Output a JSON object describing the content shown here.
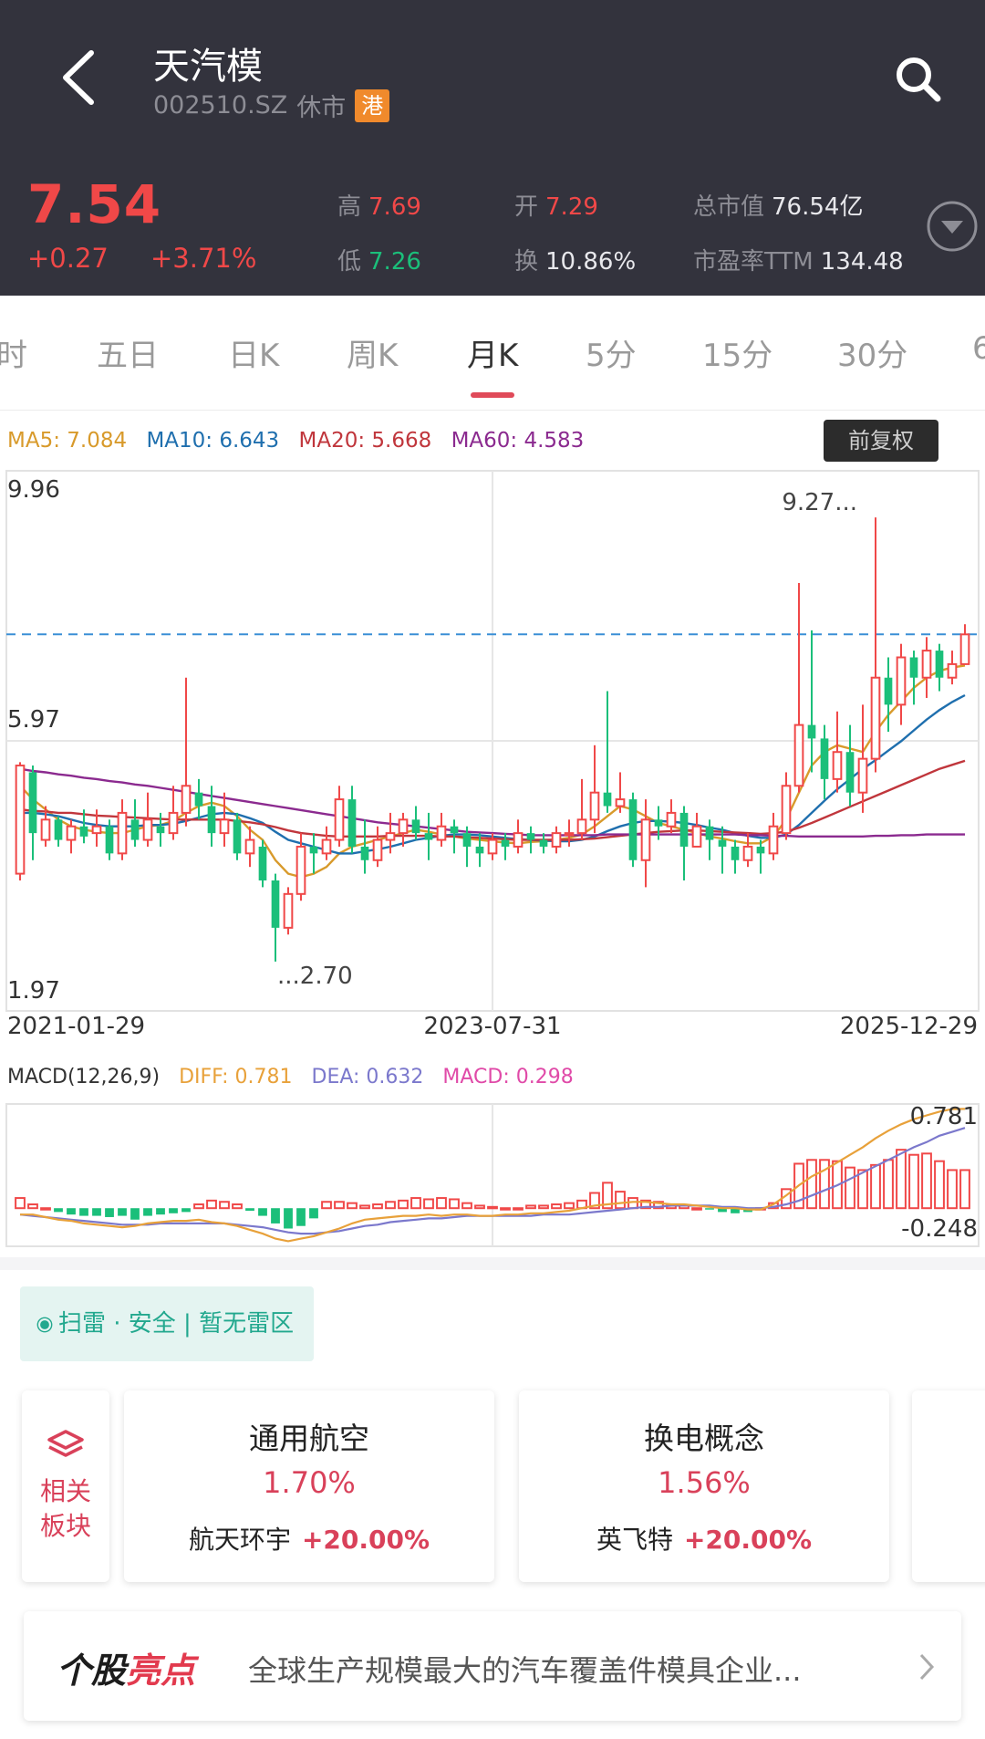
{
  "header": {
    "title": "天汽模",
    "code": "002510.SZ",
    "status": "休市",
    "market_badge": "港",
    "price": "7.54",
    "change": "+0.27",
    "change_pct": "+3.71%",
    "stats": {
      "high_label": "高",
      "high": "7.69",
      "low_label": "低",
      "low": "7.26",
      "open_label": "开",
      "open": "7.29",
      "turnover_label": "换",
      "turnover": "10.86%",
      "mcap_label": "总市值",
      "mcap": "76.54亿",
      "pe_label": "市盈率TTM",
      "pe": "134.48"
    }
  },
  "tabs": [
    "时",
    "五日",
    "日K",
    "周K",
    "月K",
    "5分",
    "15分",
    "30分",
    "6"
  ],
  "active_tab": "月K",
  "ma_legend": {
    "ma5": "MA5: 7.084",
    "ma10": "MA10: 6.643",
    "ma20": "MA20: 5.668",
    "ma60": "MA60: 4.583"
  },
  "adjust_button": "前复权",
  "chart_data": [
    {
      "type": "candlestick",
      "period": "monthly",
      "y_axis_labels": [
        "9.96",
        "5.97",
        "1.97"
      ],
      "ylim": [
        1.97,
        9.96
      ],
      "x_axis_labels": [
        "2021-01-29",
        "2023-07-31",
        "2025-12-29"
      ],
      "annotations": {
        "high": "9.27...",
        "low": "...2.70"
      },
      "last_close_line": 7.54,
      "candles": [
        [
          4.0,
          5.6,
          5.65,
          3.9
        ],
        [
          5.5,
          4.6,
          5.6,
          4.2
        ],
        [
          4.5,
          4.8,
          5.0,
          4.4
        ],
        [
          4.8,
          4.5,
          4.85,
          4.4
        ],
        [
          4.5,
          4.7,
          4.8,
          4.3
        ],
        [
          4.7,
          4.55,
          4.95,
          4.45
        ],
        [
          4.6,
          4.7,
          4.95,
          4.4
        ],
        [
          4.7,
          4.3,
          4.8,
          4.2
        ],
        [
          4.3,
          4.9,
          5.1,
          4.2
        ],
        [
          4.8,
          4.5,
          5.1,
          4.4
        ],
        [
          4.5,
          4.8,
          5.2,
          4.4
        ],
        [
          4.7,
          4.6,
          4.9,
          4.4
        ],
        [
          4.6,
          4.9,
          5.3,
          4.5
        ],
        [
          4.9,
          5.3,
          6.9,
          4.7
        ],
        [
          5.2,
          5.0,
          5.4,
          4.8
        ],
        [
          5.0,
          4.6,
          5.3,
          4.4
        ],
        [
          4.6,
          4.8,
          5.2,
          4.4
        ],
        [
          4.8,
          4.3,
          4.9,
          4.2
        ],
        [
          4.3,
          4.5,
          4.7,
          4.1
        ],
        [
          4.4,
          3.9,
          4.5,
          3.8
        ],
        [
          3.9,
          3.2,
          4.0,
          2.7
        ],
        [
          3.2,
          3.7,
          3.8,
          3.1
        ],
        [
          3.7,
          4.4,
          4.6,
          3.6
        ],
        [
          4.4,
          4.3,
          4.6,
          4.0
        ],
        [
          4.3,
          4.5,
          4.7,
          4.2
        ],
        [
          4.5,
          5.1,
          5.3,
          4.4
        ],
        [
          5.1,
          4.4,
          5.3,
          4.3
        ],
        [
          4.4,
          4.2,
          4.8,
          4.0
        ],
        [
          4.2,
          4.5,
          4.7,
          4.1
        ],
        [
          4.5,
          4.6,
          4.9,
          4.3
        ],
        [
          4.6,
          4.8,
          4.9,
          4.4
        ],
        [
          4.8,
          4.6,
          5.0,
          4.5
        ],
        [
          4.6,
          4.5,
          4.9,
          4.2
        ],
        [
          4.5,
          4.7,
          4.9,
          4.4
        ],
        [
          4.7,
          4.6,
          4.8,
          4.3
        ],
        [
          4.6,
          4.4,
          4.7,
          4.1
        ],
        [
          4.4,
          4.3,
          4.6,
          4.1
        ],
        [
          4.3,
          4.5,
          4.6,
          4.2
        ],
        [
          4.5,
          4.4,
          4.6,
          4.2
        ],
        [
          4.4,
          4.6,
          4.8,
          4.3
        ],
        [
          4.6,
          4.5,
          4.7,
          4.3
        ],
        [
          4.5,
          4.4,
          4.6,
          4.3
        ],
        [
          4.4,
          4.6,
          4.7,
          4.3
        ],
        [
          4.6,
          4.6,
          4.8,
          4.4
        ],
        [
          4.6,
          4.8,
          5.4,
          4.5
        ],
        [
          4.8,
          5.2,
          5.9,
          4.6
        ],
        [
          5.2,
          5.0,
          6.7,
          4.9
        ],
        [
          5.0,
          5.1,
          5.5,
          4.9
        ],
        [
          5.1,
          4.2,
          5.2,
          4.1
        ],
        [
          4.2,
          4.8,
          5.1,
          3.8
        ],
        [
          4.8,
          4.7,
          5.0,
          4.5
        ],
        [
          4.7,
          4.9,
          5.1,
          4.6
        ],
        [
          4.9,
          4.4,
          5.0,
          3.9
        ],
        [
          4.4,
          4.7,
          4.9,
          4.5
        ],
        [
          4.7,
          4.5,
          4.8,
          4.2
        ],
        [
          4.5,
          4.4,
          4.7,
          4.0
        ],
        [
          4.4,
          4.2,
          4.5,
          4.0
        ],
        [
          4.2,
          4.4,
          4.6,
          4.1
        ],
        [
          4.4,
          4.3,
          4.5,
          4.0
        ],
        [
          4.3,
          4.7,
          4.9,
          4.2
        ],
        [
          4.6,
          5.3,
          5.5,
          4.5
        ],
        [
          5.3,
          6.2,
          8.3,
          5.2
        ],
        [
          6.2,
          6.0,
          7.6,
          5.5
        ],
        [
          6.0,
          5.4,
          6.2,
          5.1
        ],
        [
          5.4,
          5.8,
          6.4,
          5.2
        ],
        [
          5.8,
          5.2,
          6.2,
          5.0
        ],
        [
          5.2,
          5.7,
          6.5,
          4.9
        ],
        [
          5.7,
          6.9,
          9.27,
          5.5
        ],
        [
          6.9,
          6.5,
          7.2,
          6.1
        ],
        [
          6.5,
          7.2,
          7.4,
          6.2
        ],
        [
          7.2,
          6.9,
          7.3,
          6.5
        ],
        [
          6.9,
          7.3,
          7.5,
          6.6
        ],
        [
          7.3,
          6.9,
          7.4,
          6.7
        ],
        [
          6.9,
          7.1,
          7.3,
          6.8
        ],
        [
          7.1,
          7.54,
          7.69,
          7.26
        ]
      ],
      "ma_series": [
        {
          "name": "MA5",
          "color": "#d89a2b",
          "values": [
            5.3,
            5.1,
            4.95,
            4.8,
            4.7,
            4.65,
            4.62,
            4.6,
            4.6,
            4.65,
            4.7,
            4.72,
            4.78,
            4.9,
            5.0,
            5.05,
            5.0,
            4.85,
            4.65,
            4.5,
            4.2,
            4.0,
            3.95,
            4.0,
            4.1,
            4.3,
            4.4,
            4.45,
            4.5,
            4.55,
            4.6,
            4.65,
            4.62,
            4.58,
            4.55,
            4.52,
            4.5,
            4.48,
            4.46,
            4.45,
            4.47,
            4.48,
            4.5,
            4.53,
            4.58,
            4.7,
            4.85,
            5.0,
            4.95,
            4.85,
            4.75,
            4.7,
            4.65,
            4.6,
            4.55,
            4.52,
            4.48,
            4.45,
            4.45,
            4.55,
            4.8,
            5.2,
            5.6,
            5.8,
            5.9,
            5.85,
            5.8,
            6.1,
            6.35,
            6.55,
            6.75,
            6.9,
            7.0,
            7.05,
            7.08
          ]
        },
        {
          "name": "MA10",
          "color": "#1f6fae",
          "values": [
            4.9,
            4.9,
            4.88,
            4.85,
            4.8,
            4.75,
            4.72,
            4.7,
            4.7,
            4.7,
            4.72,
            4.72,
            4.74,
            4.78,
            4.83,
            4.88,
            4.9,
            4.88,
            4.82,
            4.75,
            4.62,
            4.5,
            4.45,
            4.4,
            4.35,
            4.3,
            4.3,
            4.33,
            4.36,
            4.4,
            4.45,
            4.5,
            4.53,
            4.56,
            4.58,
            4.58,
            4.57,
            4.55,
            4.53,
            4.51,
            4.5,
            4.49,
            4.48,
            4.48,
            4.5,
            4.55,
            4.63,
            4.7,
            4.75,
            4.78,
            4.78,
            4.77,
            4.75,
            4.72,
            4.68,
            4.65,
            4.6,
            4.56,
            4.53,
            4.53,
            4.58,
            4.72,
            4.9,
            5.08,
            5.25,
            5.4,
            5.55,
            5.68,
            5.82,
            5.96,
            6.12,
            6.28,
            6.42,
            6.54,
            6.64
          ]
        },
        {
          "name": "MA20",
          "color": "#c0363c",
          "values": [
            4.95,
            4.93,
            4.92,
            4.9,
            4.9,
            4.88,
            4.86,
            4.85,
            4.84,
            4.83,
            4.82,
            4.81,
            4.8,
            4.8,
            4.8,
            4.8,
            4.8,
            4.78,
            4.76,
            4.73,
            4.69,
            4.64,
            4.6,
            4.58,
            4.56,
            4.55,
            4.55,
            4.55,
            4.55,
            4.56,
            4.56,
            4.56,
            4.56,
            4.55,
            4.55,
            4.54,
            4.53,
            4.52,
            4.51,
            4.5,
            4.5,
            4.5,
            4.5,
            4.5,
            4.51,
            4.52,
            4.54,
            4.56,
            4.58,
            4.6,
            4.62,
            4.63,
            4.64,
            4.64,
            4.63,
            4.62,
            4.61,
            4.6,
            4.59,
            4.6,
            4.62,
            4.68,
            4.75,
            4.83,
            4.91,
            4.99,
            5.07,
            5.15,
            5.23,
            5.31,
            5.39,
            5.47,
            5.55,
            5.61,
            5.67
          ]
        },
        {
          "name": "MA60",
          "color": "#8b2a8f",
          "values": [
            5.55,
            5.52,
            5.5,
            5.47,
            5.45,
            5.42,
            5.4,
            5.37,
            5.35,
            5.32,
            5.3,
            5.27,
            5.24,
            5.21,
            5.18,
            5.15,
            5.12,
            5.09,
            5.06,
            5.03,
            5.0,
            4.97,
            4.94,
            4.91,
            4.88,
            4.85,
            4.82,
            4.79,
            4.76,
            4.74,
            4.72,
            4.7,
            4.68,
            4.66,
            4.64,
            4.62,
            4.61,
            4.6,
            4.59,
            4.58,
            4.57,
            4.57,
            4.57,
            4.57,
            4.57,
            4.57,
            4.58,
            4.58,
            4.58,
            4.58,
            4.58,
            4.58,
            4.58,
            4.58,
            4.58,
            4.58,
            4.58,
            4.57,
            4.57,
            4.56,
            4.56,
            4.55,
            4.55,
            4.55,
            4.55,
            4.55,
            4.55,
            4.56,
            4.56,
            4.57,
            4.57,
            4.58,
            4.58,
            4.58,
            4.58
          ]
        }
      ]
    },
    {
      "type": "macd",
      "params": "MACD(12,26,9)",
      "y_axis_labels": [
        "0.781",
        "-0.248"
      ],
      "ylim": [
        -0.3,
        0.82
      ],
      "diff_label": "DIFF: 0.781",
      "dea_label": "DEA: 0.632",
      "macd_label": "MACD: 0.298",
      "hist": [
        0.08,
        0.03,
        0.0,
        -0.03,
        -0.05,
        -0.06,
        -0.06,
        -0.07,
        -0.06,
        -0.09,
        -0.06,
        -0.05,
        -0.04,
        -0.03,
        0.03,
        0.06,
        0.05,
        0.03,
        -0.02,
        -0.06,
        -0.12,
        -0.16,
        -0.14,
        -0.08,
        0.05,
        0.05,
        0.04,
        0.02,
        0.03,
        0.05,
        0.06,
        0.08,
        0.07,
        0.08,
        0.07,
        0.04,
        0.02,
        0.01,
        0.0,
        0.0,
        0.02,
        0.02,
        0.03,
        0.04,
        0.06,
        0.12,
        0.2,
        0.13,
        0.08,
        0.06,
        0.05,
        0.03,
        0.02,
        0.0,
        -0.01,
        -0.03,
        -0.04,
        -0.03,
        0.0,
        0.04,
        0.15,
        0.35,
        0.38,
        0.38,
        0.37,
        0.32,
        0.3,
        0.34,
        0.38,
        0.46,
        0.42,
        0.43,
        0.37,
        0.3,
        0.3
      ],
      "diff": [
        -0.05,
        -0.05,
        -0.07,
        -0.09,
        -0.1,
        -0.12,
        -0.13,
        -0.14,
        -0.15,
        -0.14,
        -0.12,
        -0.11,
        -0.1,
        -0.1,
        -0.09,
        -0.11,
        -0.12,
        -0.14,
        -0.17,
        -0.2,
        -0.24,
        -0.26,
        -0.24,
        -0.22,
        -0.19,
        -0.16,
        -0.12,
        -0.09,
        -0.08,
        -0.07,
        -0.06,
        -0.06,
        -0.05,
        -0.06,
        -0.05,
        -0.05,
        -0.06,
        -0.06,
        -0.05,
        -0.05,
        -0.04,
        -0.04,
        -0.03,
        -0.02,
        0.0,
        0.02,
        0.03,
        0.04,
        0.05,
        0.05,
        0.04,
        0.03,
        0.03,
        0.02,
        0.01,
        0.0,
        0.0,
        -0.01,
        -0.01,
        0.03,
        0.1,
        0.18,
        0.25,
        0.3,
        0.36,
        0.42,
        0.48,
        0.55,
        0.61,
        0.66,
        0.7,
        0.73,
        0.76,
        0.78,
        0.781
      ],
      "dea": [
        -0.05,
        -0.06,
        -0.07,
        -0.08,
        -0.09,
        -0.1,
        -0.11,
        -0.12,
        -0.13,
        -0.13,
        -0.13,
        -0.12,
        -0.12,
        -0.12,
        -0.12,
        -0.12,
        -0.12,
        -0.13,
        -0.14,
        -0.15,
        -0.17,
        -0.19,
        -0.2,
        -0.2,
        -0.19,
        -0.18,
        -0.16,
        -0.14,
        -0.13,
        -0.11,
        -0.1,
        -0.09,
        -0.08,
        -0.08,
        -0.07,
        -0.06,
        -0.06,
        -0.06,
        -0.06,
        -0.06,
        -0.06,
        -0.05,
        -0.05,
        -0.05,
        -0.04,
        -0.03,
        -0.02,
        -0.01,
        0.0,
        0.01,
        0.01,
        0.02,
        0.02,
        0.02,
        0.02,
        0.01,
        0.01,
        0.0,
        0.0,
        0.01,
        0.03,
        0.06,
        0.1,
        0.14,
        0.18,
        0.23,
        0.28,
        0.33,
        0.38,
        0.43,
        0.48,
        0.52,
        0.57,
        0.6,
        0.632
      ]
    }
  ],
  "mine_scan": {
    "label": "扫雷 · 安全 | 暂无雷区"
  },
  "related": {
    "label_line1": "相关",
    "label_line2": "板块"
  },
  "sectors": [
    {
      "name": "通用航空",
      "rate": "1.70%",
      "leader": "航天环宇",
      "leader_rate": "+20.00%"
    },
    {
      "name": "换电概念",
      "rate": "1.56%",
      "leader": "英飞特",
      "leader_rate": "+20.00%"
    }
  ],
  "highlight": {
    "brand_a": "个股",
    "brand_b": "亮点",
    "text": "全球生产规模最大的汽车覆盖件模具企业..."
  },
  "colors": {
    "up": "#f04848",
    "down": "#1bbf7a",
    "header_bg": "#33333d",
    "accent": "#e04a59"
  }
}
